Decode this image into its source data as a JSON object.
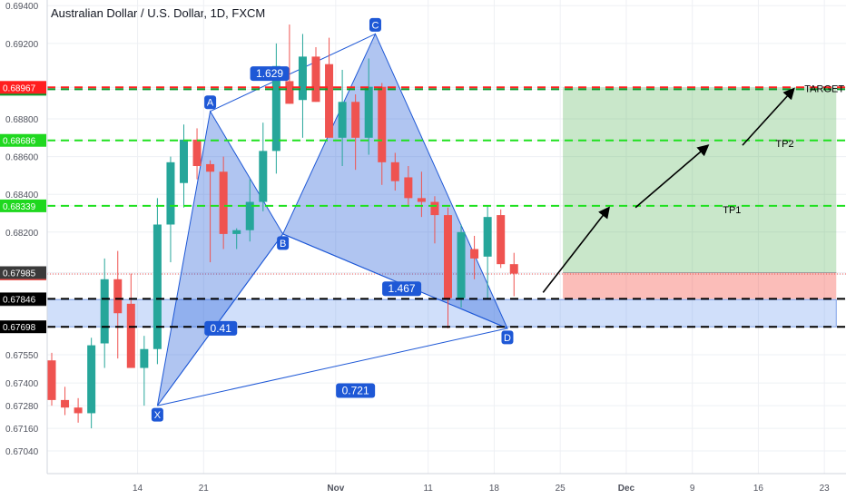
{
  "header": {
    "title": "Australian Dollar / U.S. Dollar, 1D, FXCM"
  },
  "colors": {
    "up": "#26a69a",
    "down": "#ef5350",
    "grid": "#eef0f4",
    "pattern": "#1e58d6"
  },
  "chart_data": {
    "type": "candlestick",
    "ylim": [
      0.6692,
      0.6943
    ],
    "y_ticks": [
      "0.67040",
      "0.67160",
      "0.67280",
      "0.67400",
      "0.67550",
      "0.67698",
      "0.67842",
      "0.67846",
      "0.67978",
      "0.67985",
      "0.68200",
      "0.68339",
      "0.68400",
      "0.68600",
      "0.68686",
      "0.68800",
      "0.68957",
      "0.68967",
      "0.69200",
      "0.69400"
    ],
    "x_ticks": [
      {
        "label": "14",
        "i": 6.5
      },
      {
        "label": "21",
        "i": 11.5
      },
      {
        "label": "Nov",
        "i": 21.5
      },
      {
        "label": "11",
        "i": 28.5
      },
      {
        "label": "18",
        "i": 33.5
      },
      {
        "label": "25",
        "i": 38.5
      },
      {
        "label": "Dec",
        "i": 43.5
      },
      {
        "label": "9",
        "i": 48.5
      },
      {
        "label": "16",
        "i": 53.5
      },
      {
        "label": "23",
        "i": 58.5
      }
    ],
    "candles": [
      {
        "o": 0.6752,
        "h": 0.6756,
        "l": 0.6728,
        "c": 0.6731
      },
      {
        "o": 0.6731,
        "h": 0.6738,
        "l": 0.6723,
        "c": 0.6727
      },
      {
        "o": 0.6727,
        "h": 0.6732,
        "l": 0.6719,
        "c": 0.6724
      },
      {
        "o": 0.6724,
        "h": 0.6764,
        "l": 0.6716,
        "c": 0.676
      },
      {
        "o": 0.6761,
        "h": 0.6806,
        "l": 0.6748,
        "c": 0.6795
      },
      {
        "o": 0.6795,
        "h": 0.681,
        "l": 0.6753,
        "c": 0.6777
      },
      {
        "o": 0.6782,
        "h": 0.6798,
        "l": 0.6748,
        "c": 0.6748
      },
      {
        "o": 0.6748,
        "h": 0.6765,
        "l": 0.6728,
        "c": 0.6758
      },
      {
        "o": 0.6758,
        "h": 0.6838,
        "l": 0.675,
        "c": 0.6824
      },
      {
        "o": 0.6824,
        "h": 0.686,
        "l": 0.6804,
        "c": 0.6857
      },
      {
        "o": 0.6846,
        "h": 0.6877,
        "l": 0.6833,
        "c": 0.6869
      },
      {
        "o": 0.6869,
        "h": 0.6875,
        "l": 0.6848,
        "c": 0.6855
      },
      {
        "o": 0.6856,
        "h": 0.6858,
        "l": 0.6804,
        "c": 0.6852
      },
      {
        "o": 0.6852,
        "h": 0.686,
        "l": 0.6811,
        "c": 0.6819
      },
      {
        "o": 0.6819,
        "h": 0.6822,
        "l": 0.6811,
        "c": 0.6821
      },
      {
        "o": 0.6821,
        "h": 0.6848,
        "l": 0.6815,
        "c": 0.6836
      },
      {
        "o": 0.6836,
        "h": 0.6878,
        "l": 0.6831,
        "c": 0.6863
      },
      {
        "o": 0.6863,
        "h": 0.692,
        "l": 0.6851,
        "c": 0.6908
      },
      {
        "o": 0.69,
        "h": 0.693,
        "l": 0.6888,
        "c": 0.6888
      },
      {
        "o": 0.689,
        "h": 0.6925,
        "l": 0.687,
        "c": 0.6913
      },
      {
        "o": 0.6913,
        "h": 0.6918,
        "l": 0.6889,
        "c": 0.6889
      },
      {
        "o": 0.6909,
        "h": 0.6923,
        "l": 0.687,
        "c": 0.687
      },
      {
        "o": 0.687,
        "h": 0.6906,
        "l": 0.6855,
        "c": 0.6889
      },
      {
        "o": 0.6889,
        "h": 0.6893,
        "l": 0.6853,
        "c": 0.687
      },
      {
        "o": 0.687,
        "h": 0.6912,
        "l": 0.6861,
        "c": 0.6897
      },
      {
        "o": 0.6897,
        "h": 0.6899,
        "l": 0.6845,
        "c": 0.6857
      },
      {
        "o": 0.6857,
        "h": 0.6862,
        "l": 0.6842,
        "c": 0.6847
      },
      {
        "o": 0.6849,
        "h": 0.6855,
        "l": 0.6834,
        "c": 0.6838
      },
      {
        "o": 0.6838,
        "h": 0.6852,
        "l": 0.6828,
        "c": 0.6836
      },
      {
        "o": 0.6836,
        "h": 0.6839,
        "l": 0.6814,
        "c": 0.6829
      },
      {
        "o": 0.6829,
        "h": 0.6833,
        "l": 0.6769,
        "c": 0.6785
      },
      {
        "o": 0.6785,
        "h": 0.6824,
        "l": 0.678,
        "c": 0.682
      },
      {
        "o": 0.6811,
        "h": 0.6818,
        "l": 0.6795,
        "c": 0.6806
      },
      {
        "o": 0.6807,
        "h": 0.6834,
        "l": 0.6785,
        "c": 0.6828
      },
      {
        "o": 0.6829,
        "h": 0.6832,
        "l": 0.6801,
        "c": 0.6803
      },
      {
        "o": 0.6803,
        "h": 0.6809,
        "l": 0.6786,
        "c": 0.6798
      }
    ],
    "horizontal_levels": [
      {
        "value": 0.68967,
        "label": "0.68967",
        "color": "#ff1f1f"
      },
      {
        "value": 0.68957,
        "label": "0.68957",
        "color": "#0a9b2d"
      },
      {
        "value": 0.68686,
        "label": "0.68686",
        "color": "#1fe01f"
      },
      {
        "value": 0.68339,
        "label": "0.68339",
        "color": "#1fe01f"
      },
      {
        "value": 0.67846,
        "label": "0.67846",
        "color": "#000000"
      },
      {
        "value": 0.67698,
        "label": "0.67698",
        "color": "#000000"
      }
    ],
    "price_labels": [
      {
        "value": 0.67985,
        "label": "0.67985",
        "bg": "#3a3a3a"
      },
      {
        "value": 0.67978,
        "label": "0.67978",
        "bg": "#ef5350"
      },
      {
        "value": 0.67842,
        "label": "0.67842",
        "bg": "#3a3a3a"
      }
    ],
    "pattern_points": [
      {
        "name": "X",
        "i": 8,
        "price": 0.6728
      },
      {
        "name": "A",
        "i": 12,
        "price": 0.6884
      },
      {
        "name": "B",
        "i": 17.5,
        "price": 0.6819
      },
      {
        "name": "C",
        "i": 24.5,
        "price": 0.6925
      },
      {
        "name": "D",
        "i": 34.5,
        "price": 0.6769
      }
    ],
    "ratios": [
      {
        "label": "0.41",
        "i": 12.8,
        "price": 0.6769
      },
      {
        "label": "1.629",
        "i": 16.5,
        "price": 0.6904
      },
      {
        "label": "1.467",
        "i": 26.5,
        "price": 0.679
      },
      {
        "label": "0.721",
        "i": 23,
        "price": 0.6736
      }
    ],
    "targets": [
      {
        "label": "TARGET",
        "i": 58.5,
        "price": 0.6896
      },
      {
        "label": "TP2",
        "i": 55.5,
        "price": 0.6867
      },
      {
        "label": "TP1",
        "i": 51.5,
        "price": 0.6832
      }
    ],
    "position": {
      "entry": 0.67985,
      "stop": 0.67846,
      "target": 0.68967,
      "start_i": 38.7,
      "end_i": 59.4
    },
    "support_zone": {
      "top": 0.67842,
      "bottom": 0.67698,
      "start_i": 0,
      "end_i": 59.4
    },
    "arrows": [
      {
        "from": {
          "i": 37.2,
          "price": 0.6788
        },
        "to": {
          "i": 42.2,
          "price": 0.6833
        }
      },
      {
        "from": {
          "i": 44.2,
          "price": 0.6833
        },
        "to": {
          "i": 49.7,
          "price": 0.6866
        }
      },
      {
        "from": {
          "i": 52.3,
          "price": 0.6866
        },
        "to": {
          "i": 56.2,
          "price": 0.6896
        }
      }
    ]
  }
}
